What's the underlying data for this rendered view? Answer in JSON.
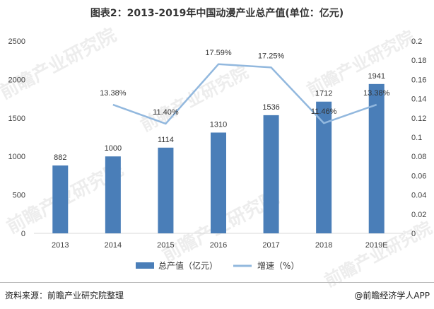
{
  "title": "图表2：2013-2019年中国动漫产业总产值(单位：亿元)",
  "source": "资料来源：前瞻产业研究院整理",
  "brand": "@前瞻经济学人APP",
  "watermark": "前瞻产业研究院",
  "colors": {
    "bar": "#4a7eb8",
    "line": "#92b8de",
    "axis": "#999999",
    "text": "#404040"
  },
  "chart_data": {
    "type": "bar",
    "categories": [
      "2013",
      "2014",
      "2015",
      "2016",
      "2017",
      "2018",
      "2019E"
    ],
    "series": [
      {
        "name": "总产值（亿元）",
        "type": "bar",
        "axis": "left",
        "values": [
          882,
          1000,
          1114,
          1310,
          1536,
          1712,
          1941
        ]
      },
      {
        "name": "增速（%）",
        "type": "line",
        "axis": "right",
        "values": [
          null,
          0.1338,
          0.114,
          0.1759,
          0.1725,
          0.1146,
          0.1338
        ],
        "labels": [
          null,
          "13.38%",
          "11.40%",
          "17.59%",
          "17.25%",
          "11.46%",
          "13.38%"
        ]
      }
    ],
    "y_left": {
      "min": 0,
      "max": 2500,
      "ticks": [
        0,
        500,
        1000,
        1500,
        2000,
        2500
      ]
    },
    "y_right": {
      "min": 0,
      "max": 0.2,
      "ticks": [
        "0",
        "0.02",
        "0.04",
        "0.06",
        "0.08",
        "0.1",
        "0.12",
        "0.14",
        "0.16",
        "0.18",
        "0.2"
      ]
    },
    "legend_position": "bottom",
    "grid": false
  }
}
